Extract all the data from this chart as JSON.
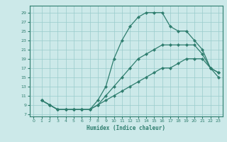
{
  "title": "",
  "xlabel": "Humidex (Indice chaleur)",
  "bg_color": "#cce9e9",
  "grid_color": "#99cccc",
  "line_color": "#2e7d6e",
  "xlim": [
    -0.5,
    23.5
  ],
  "ylim": [
    6.5,
    30.5
  ],
  "yticks": [
    7,
    9,
    11,
    13,
    15,
    17,
    19,
    21,
    23,
    25,
    27,
    29
  ],
  "xticks": [
    0,
    1,
    2,
    3,
    4,
    5,
    6,
    7,
    8,
    9,
    10,
    11,
    12,
    13,
    14,
    15,
    16,
    17,
    18,
    19,
    20,
    21,
    22,
    23
  ],
  "lines": [
    {
      "x": [
        1,
        2,
        3,
        4,
        5,
        6,
        7,
        8,
        9,
        10,
        11,
        12,
        13,
        14,
        15,
        16,
        17,
        18,
        19,
        20,
        21,
        22,
        23
      ],
      "y": [
        10,
        9,
        8,
        8,
        8,
        8,
        8,
        10,
        13,
        19,
        23,
        26,
        28,
        29,
        29,
        29,
        26,
        25,
        25,
        23,
        21,
        17,
        16
      ]
    },
    {
      "x": [
        1,
        2,
        3,
        4,
        5,
        6,
        7,
        8,
        9,
        10,
        11,
        12,
        13,
        14,
        15,
        16,
        17,
        18,
        19,
        20,
        21,
        22,
        23
      ],
      "y": [
        10,
        9,
        8,
        8,
        8,
        8,
        8,
        9,
        11,
        13,
        15,
        17,
        19,
        20,
        21,
        22,
        22,
        22,
        22,
        22,
        20,
        17,
        16
      ]
    },
    {
      "x": [
        1,
        2,
        3,
        4,
        5,
        6,
        7,
        8,
        9,
        10,
        11,
        12,
        13,
        14,
        15,
        16,
        17,
        18,
        19,
        20,
        21,
        22,
        23
      ],
      "y": [
        10,
        9,
        8,
        8,
        8,
        8,
        8,
        9,
        10,
        11,
        12,
        13,
        14,
        15,
        16,
        17,
        17,
        18,
        19,
        19,
        19,
        17,
        15
      ]
    }
  ]
}
